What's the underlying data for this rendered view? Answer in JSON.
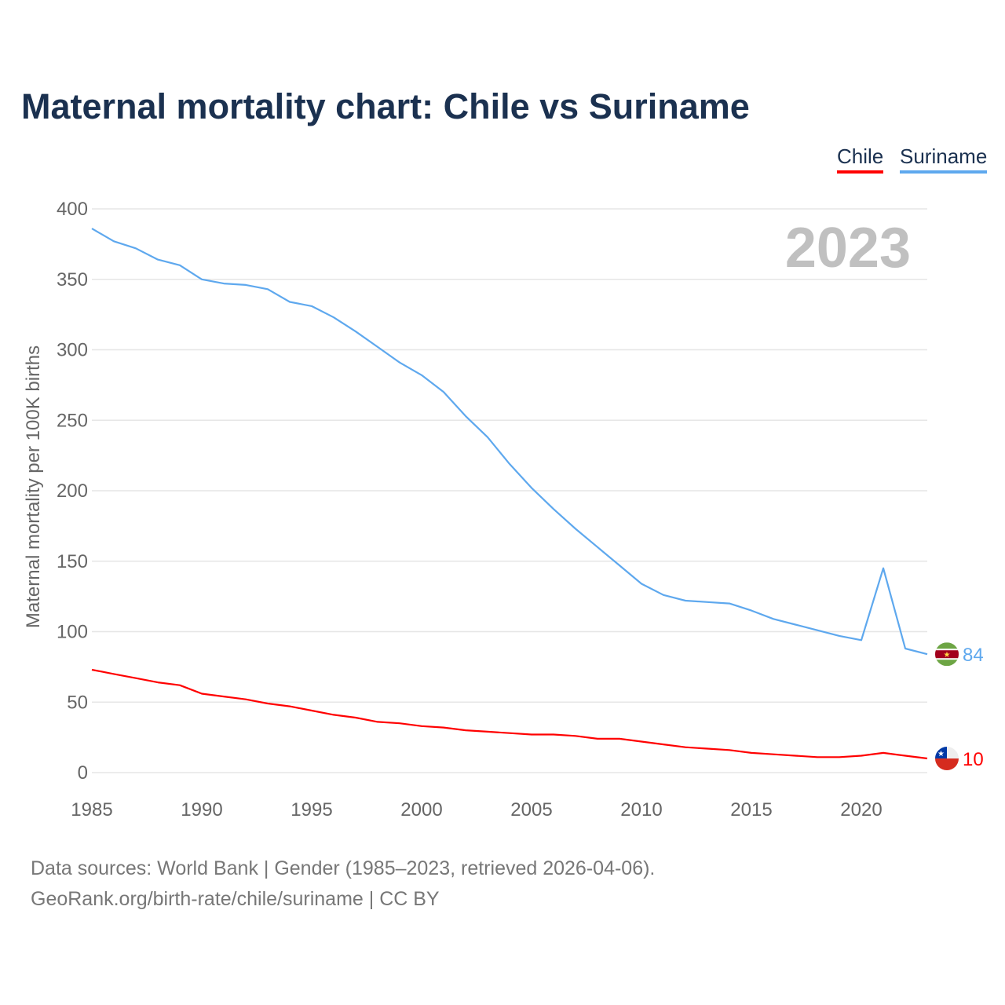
{
  "title": "Maternal mortality chart: Chile vs Suriname",
  "footer": {
    "line1": "Data sources: World Bank | Gender (1985–2023, retrieved 2026-04-06).",
    "line2": "GeoRank.org/birth-rate/chile/suriname | CC BY"
  },
  "chart_data": {
    "type": "line",
    "title": "Maternal mortality chart: Chile vs Suriname",
    "ylabel": "Maternal mortality per 100K births",
    "xlabel": "",
    "year_label": "2023",
    "ylim": [
      0,
      400
    ],
    "xlim": [
      1985,
      2023
    ],
    "yticks": [
      "0",
      "50",
      "100",
      "150",
      "200",
      "250",
      "300",
      "350",
      "400"
    ],
    "xticks": [
      "1985",
      "1990",
      "1995",
      "2000",
      "2005",
      "2010",
      "2015",
      "2020"
    ],
    "grid": true,
    "legend_position": "top-right",
    "x": [
      1985,
      1986,
      1987,
      1988,
      1989,
      1990,
      1991,
      1992,
      1993,
      1994,
      1995,
      1996,
      1997,
      1998,
      1999,
      2000,
      2001,
      2002,
      2003,
      2004,
      2005,
      2006,
      2007,
      2008,
      2009,
      2010,
      2011,
      2012,
      2013,
      2014,
      2015,
      2016,
      2017,
      2018,
      2019,
      2020,
      2021,
      2022,
      2023
    ],
    "series": [
      {
        "name": "Chile",
        "color": "#ff0000",
        "end_label": "10",
        "values": [
          73,
          70,
          67,
          64,
          62,
          56,
          54,
          52,
          49,
          47,
          44,
          41,
          39,
          36,
          35,
          33,
          32,
          30,
          29,
          28,
          27,
          27,
          26,
          24,
          24,
          22,
          20,
          18,
          17,
          16,
          14,
          13,
          12,
          11,
          11,
          12,
          14,
          12,
          10
        ]
      },
      {
        "name": "Suriname",
        "color": "#5ea8ee",
        "end_label": "84",
        "values": [
          386,
          377,
          372,
          364,
          360,
          350,
          347,
          346,
          343,
          334,
          331,
          323,
          313,
          302,
          291,
          282,
          270,
          253,
          238,
          219,
          202,
          187,
          173,
          160,
          147,
          134,
          126,
          122,
          121,
          120,
          115,
          109,
          105,
          101,
          97,
          94,
          145,
          88,
          84
        ]
      }
    ]
  }
}
